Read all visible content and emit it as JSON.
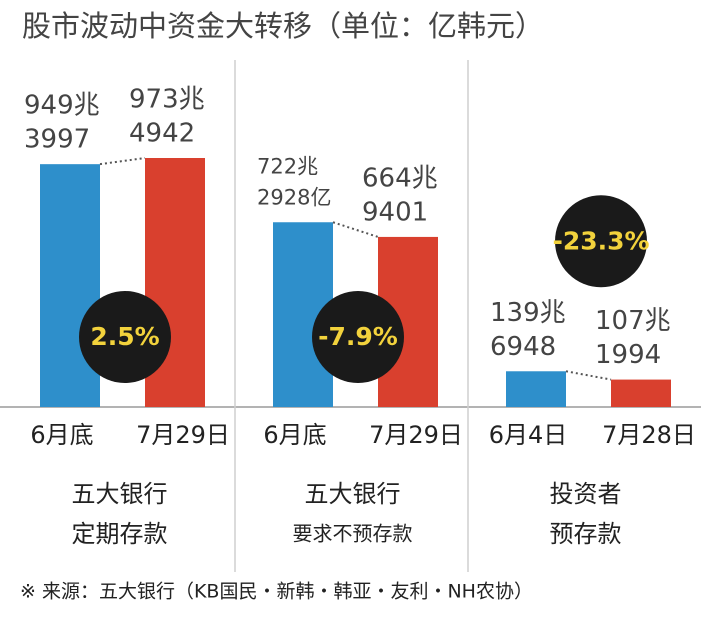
{
  "chart_data": {
    "type": "grouped-bar",
    "title": "股市波动中资金大转移（单位：亿韩元）",
    "colors": [
      "#2e8fcb",
      "#d9402e"
    ],
    "groups": [
      {
        "categories": [
          "6月底",
          "7月29日"
        ],
        "values": [
          9493997,
          9734942
        ],
        "value_labels": [
          [
            "949兆",
            "3997"
          ],
          [
            "973兆",
            "4942"
          ]
        ],
        "change": 2.5,
        "change_label": "2.5%",
        "label": [
          "五大银行",
          "定期存款"
        ]
      },
      {
        "categories": [
          "6月底",
          "7月29日"
        ],
        "values": [
          7222928,
          6649401
        ],
        "value_labels": [
          [
            "722兆",
            "2928亿"
          ],
          [
            "664兆",
            "9401"
          ]
        ],
        "change": -7.9,
        "change_label": "-7.9%",
        "label": [
          "五大银行",
          "要求不预存款"
        ]
      },
      {
        "categories": [
          "6月4日",
          "7月28日"
        ],
        "values": [
          1396948,
          1071994
        ],
        "value_labels": [
          [
            "139兆",
            "6948"
          ],
          [
            "107兆",
            "1994"
          ]
        ],
        "change": -23.3,
        "change_label": "-23.3%",
        "label": [
          "投资者",
          "预存款"
        ]
      }
    ],
    "note": "※ 来源：五大银行（KB国民・新韩・韩亚・友利・NH农协）"
  }
}
